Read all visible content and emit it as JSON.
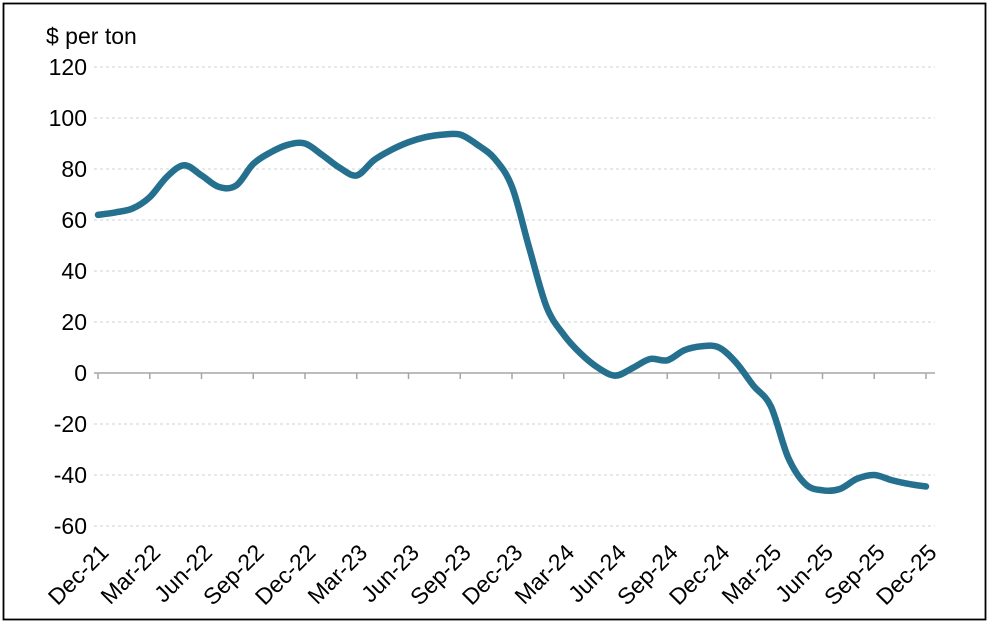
{
  "page": {
    "background": "#ffffff",
    "frame_border_color": "#000000"
  },
  "chart_data": {
    "type": "line",
    "title": "$ per ton",
    "legend": "none",
    "grid": "horizontal-dashed",
    "ylim": [
      -60,
      120
    ],
    "ytick_step": 20,
    "y_tick_labels": [
      "120",
      "100",
      "80",
      "60",
      "40",
      "20",
      "0",
      "-20",
      "-40",
      "-60"
    ],
    "x_tick_labels": [
      "Dec-21",
      "Mar-22",
      "Jun-22",
      "Sep-22",
      "Dec-22",
      "Mar-23",
      "Jun-23",
      "Sep-23",
      "Dec-23",
      "Mar-24",
      "Jun-24",
      "Sep-24",
      "Dec-24",
      "Mar-25",
      "Jun-25",
      "Sep-25",
      "Dec-25"
    ],
    "line_color": "#26708f",
    "grid_color": "#d9d9d9",
    "axis_color": "#a6a6a6",
    "text_color": "#000000",
    "series": [
      {
        "name": "$ per ton",
        "x": [
          "Dec-21",
          "Jan-22",
          "Feb-22",
          "Mar-22",
          "Apr-22",
          "May-22",
          "Jun-22",
          "Jul-22",
          "Aug-22",
          "Sep-22",
          "Oct-22",
          "Nov-22",
          "Dec-22",
          "Jan-23",
          "Feb-23",
          "Mar-23",
          "Apr-23",
          "May-23",
          "Jun-23",
          "Jul-23",
          "Aug-23",
          "Sep-23",
          "Oct-23",
          "Nov-23",
          "Dec-23",
          "Jan-24",
          "Feb-24",
          "Mar-24",
          "Apr-24",
          "May-24",
          "Jun-24",
          "Jul-24",
          "Aug-24",
          "Sep-24",
          "Oct-24",
          "Nov-24",
          "Dec-24",
          "Jan-25",
          "Feb-25",
          "Mar-25",
          "Apr-25",
          "May-25",
          "Jun-25",
          "Jul-25",
          "Aug-25",
          "Sep-25",
          "Oct-25",
          "Nov-25",
          "Dec-25"
        ],
        "values": [
          62,
          63,
          64.5,
          69,
          77,
          81.5,
          77.5,
          73,
          73.5,
          82,
          86.5,
          89.5,
          90,
          85.5,
          80.5,
          77.5,
          83.5,
          87.5,
          90.5,
          92.5,
          93.5,
          93.5,
          89.5,
          84,
          73,
          49,
          26,
          15,
          7.5,
          2,
          -1,
          2,
          5.5,
          5,
          9,
          10.5,
          10,
          4,
          -5,
          -13,
          -33,
          -43.5,
          -46,
          -45.5,
          -41.5,
          -40,
          -42,
          -43.5,
          -44.5
        ]
      }
    ]
  }
}
